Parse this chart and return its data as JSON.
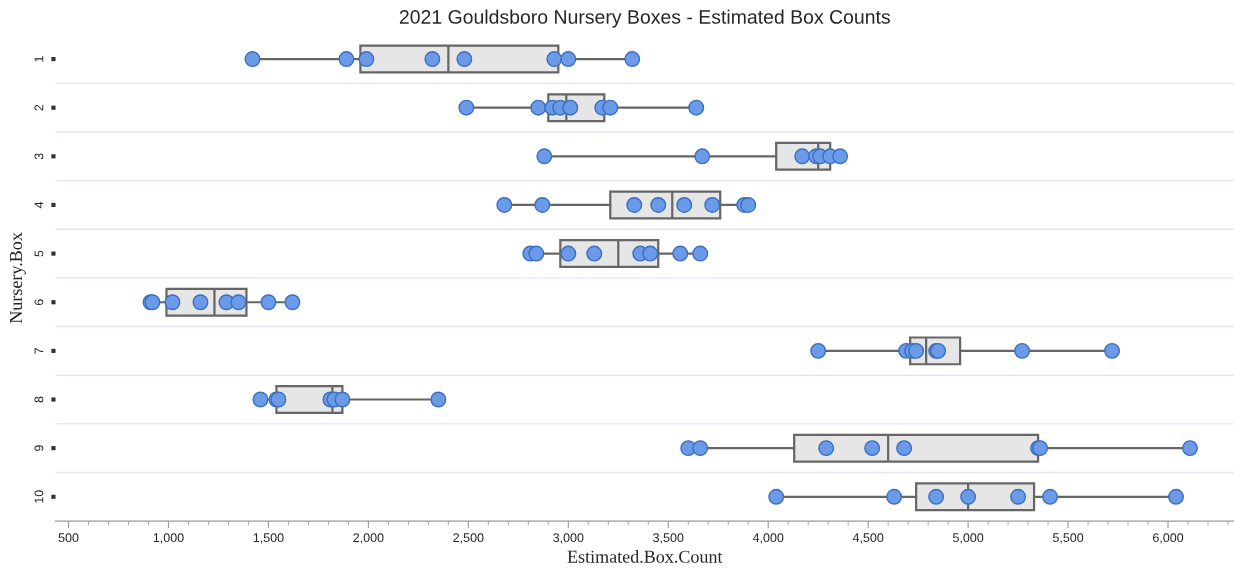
{
  "chart_data": {
    "type": "box",
    "orientation": "horizontal",
    "title": "2021 Gouldsboro Nursery Boxes - Estimated Box Counts",
    "xlabel": "Estimated.Box.Count",
    "ylabel": "Nursery.Box",
    "categories": [
      "1",
      "2",
      "3",
      "4",
      "5",
      "6",
      "7",
      "8",
      "9",
      "10"
    ],
    "xlim": [
      435,
      6330
    ],
    "xticks": [
      {
        "value": 500,
        "label": "500"
      },
      {
        "value": 1000,
        "label": "1,000"
      },
      {
        "value": 1500,
        "label": "1,500"
      },
      {
        "value": 2000,
        "label": "2,000"
      },
      {
        "value": 2500,
        "label": "2,500"
      },
      {
        "value": 3000,
        "label": "3,000"
      },
      {
        "value": 3500,
        "label": "3,500"
      },
      {
        "value": 4000,
        "label": "4,000"
      },
      {
        "value": 4500,
        "label": "4,500"
      },
      {
        "value": 5000,
        "label": "5,000"
      },
      {
        "value": 5500,
        "label": "5,500"
      },
      {
        "value": 6000,
        "label": "6,000"
      }
    ],
    "grid": "y",
    "legend": false,
    "series": [
      {
        "type": "box",
        "color": "#e6e6e6",
        "boxes": [
          {
            "low": 1420,
            "q1": 1960,
            "median": 2400,
            "q3": 2950,
            "high": 3320
          },
          {
            "low": 2490,
            "q1": 2900,
            "median": 2990,
            "q3": 3180,
            "high": 3640
          },
          {
            "low": 2880,
            "q1": 4040,
            "median": 4250,
            "q3": 4310,
            "high": 4360
          },
          {
            "low": 2680,
            "q1": 3210,
            "median": 3520,
            "q3": 3760,
            "high": 3900
          },
          {
            "low": 2810,
            "q1": 2960,
            "median": 3250,
            "q3": 3450,
            "high": 3660
          },
          {
            "low": 910,
            "q1": 990,
            "median": 1230,
            "q3": 1390,
            "high": 1620
          },
          {
            "low": 4250,
            "q1": 4710,
            "median": 4790,
            "q3": 4960,
            "high": 5720
          },
          {
            "low": 1460,
            "q1": 1540,
            "median": 1820,
            "q3": 1870,
            "high": 2350
          },
          {
            "low": 3600,
            "q1": 4130,
            "median": 4600,
            "q3": 5350,
            "high": 6110
          },
          {
            "low": 4040,
            "q1": 4740,
            "median": 5000,
            "q3": 5330,
            "high": 6040
          }
        ]
      },
      {
        "type": "scatter",
        "color": "#6b9be8",
        "marker": "circle",
        "x": [
          "1",
          "1",
          "1",
          "1",
          "1",
          "1",
          "1",
          "1",
          "2",
          "2",
          "2",
          "2",
          "2",
          "2",
          "2",
          "2",
          "3",
          "3",
          "3",
          "3",
          "3",
          "3",
          "3",
          "4",
          "4",
          "4",
          "4",
          "4",
          "4",
          "4",
          "4",
          "5",
          "5",
          "5",
          "5",
          "5",
          "5",
          "5",
          "5",
          "6",
          "6",
          "6",
          "6",
          "6",
          "6",
          "6",
          "6",
          "7",
          "7",
          "7",
          "7",
          "7",
          "7",
          "7",
          "7",
          "8",
          "8",
          "8",
          "8",
          "8",
          "8",
          "8",
          "9",
          "9",
          "9",
          "9",
          "9",
          "9",
          "9",
          "9",
          "10",
          "10",
          "10",
          "10",
          "10",
          "10",
          "10"
        ],
        "values": [
          1420,
          1890,
          1990,
          2320,
          2480,
          2930,
          3000,
          3320,
          2490,
          2850,
          2920,
          2960,
          3010,
          3170,
          3210,
          3640,
          2880,
          3670,
          4170,
          4240,
          4260,
          4310,
          4360,
          2680,
          2870,
          3330,
          3450,
          3580,
          3720,
          3880,
          3900,
          2810,
          2840,
          3000,
          3130,
          3360,
          3410,
          3560,
          3660,
          910,
          920,
          1020,
          1160,
          1290,
          1350,
          1500,
          1620,
          4250,
          4690,
          4720,
          4740,
          4840,
          4850,
          5270,
          5720,
          1460,
          1540,
          1550,
          1810,
          1830,
          1870,
          2350,
          3600,
          3660,
          4290,
          4520,
          4680,
          5350,
          5360,
          6110,
          4040,
          4630,
          4840,
          5000,
          5250,
          5410,
          6040
        ]
      }
    ]
  }
}
